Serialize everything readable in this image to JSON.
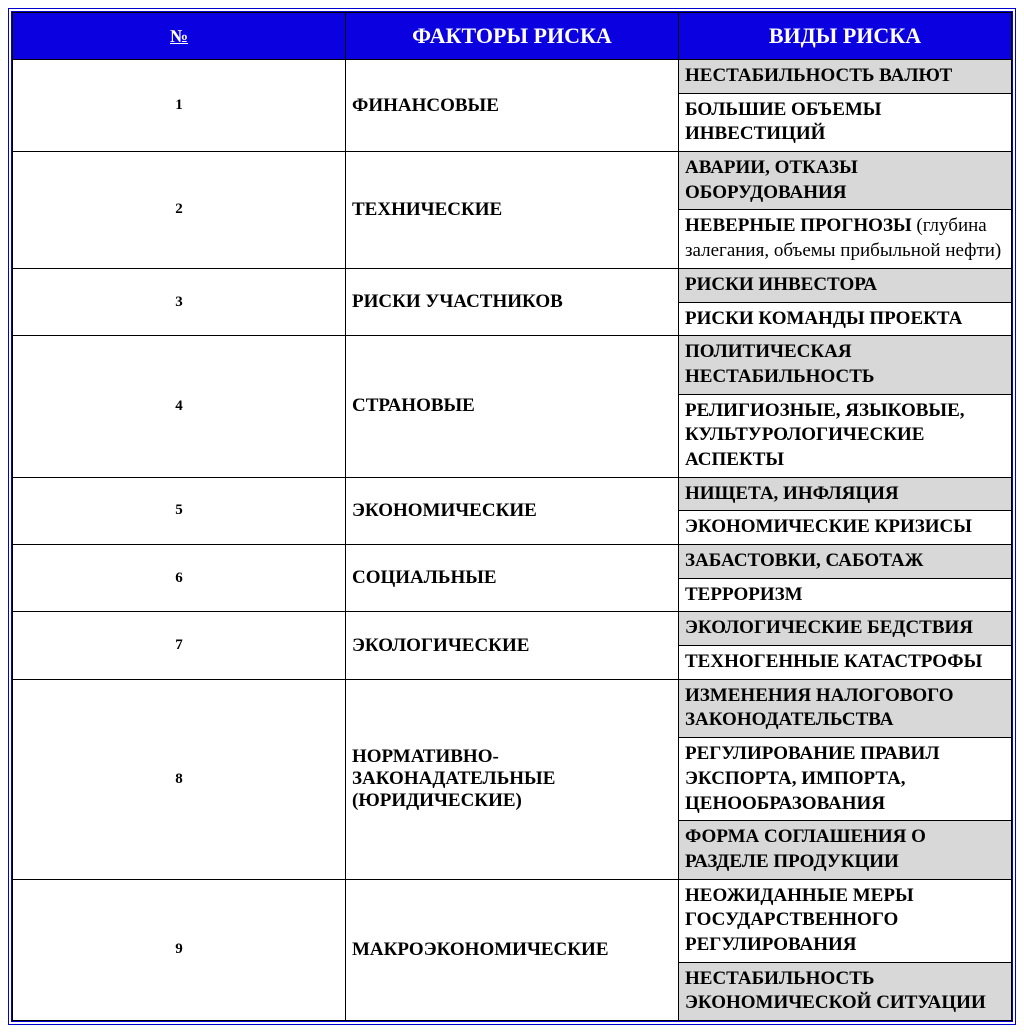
{
  "colors": {
    "header_bg": "#0a00e0",
    "header_text": "#ffffff",
    "border": "#000000",
    "shade": "#d8d8d8",
    "plain": "#ffffff",
    "frame": "#0000d0"
  },
  "headers": {
    "num": "№",
    "factors": "ФАКТОРЫ РИСКА",
    "types": "ВИДЫ РИСКА"
  },
  "rows": [
    {
      "num": "1",
      "factor": "ФИНАНСОВЫЕ",
      "types": [
        {
          "text": "НЕСТАБИЛЬНОСТЬ ВАЛЮТ",
          "shade": true
        },
        {
          "text": "БОЛЬШИЕ ОБЪЕМЫ ИНВЕСТИЦИЙ",
          "shade": false
        }
      ]
    },
    {
      "num": "2",
      "factor": "ТЕХНИЧЕСКИЕ",
      "types": [
        {
          "text": "АВАРИИ, ОТКАЗЫ ОБОРУДОВАНИЯ",
          "shade": true
        },
        {
          "html": "НЕВЕРНЫЕ ПРОГНОЗЫ <span class=\"mixed-normal\">(глубина залегания, объемы прибыльной нефти)</span>",
          "shade": false
        }
      ]
    },
    {
      "num": "3",
      "factor": "РИСКИ УЧАСТНИКОВ",
      "types": [
        {
          "text": "РИСКИ ИНВЕСТОРА",
          "shade": true
        },
        {
          "text": "РИСКИ КОМАНДЫ ПРОЕКТА",
          "shade": false
        }
      ]
    },
    {
      "num": "4",
      "factor": "СТРАНОВЫЕ",
      "types": [
        {
          "text": "ПОЛИТИЧЕСКАЯ НЕСТАБИЛЬНОСТЬ",
          "shade": true
        },
        {
          "text": "РЕЛИГИОЗНЫЕ, ЯЗЫКОВЫЕ, КУЛЬТУРОЛОГИЧЕСКИЕ АСПЕКТЫ",
          "shade": false
        }
      ]
    },
    {
      "num": "5",
      "factor": "ЭКОНОМИЧЕСКИЕ",
      "types": [
        {
          "text": "НИЩЕТА, ИНФЛЯЦИЯ",
          "shade": true
        },
        {
          "text": "ЭКОНОМИЧЕСКИЕ КРИЗИСЫ",
          "shade": false
        }
      ]
    },
    {
      "num": "6",
      "factor": "СОЦИАЛЬНЫЕ",
      "types": [
        {
          "text": "ЗАБАСТОВКИ, САБОТАЖ",
          "shade": true
        },
        {
          "text": "ТЕРРОРИЗМ",
          "shade": false
        }
      ]
    },
    {
      "num": "7",
      "factor": "ЭКОЛОГИЧЕСКИЕ",
      "types": [
        {
          "text": "ЭКОЛОГИЧЕСКИЕ БЕДСТВИЯ",
          "shade": true
        },
        {
          "text": "ТЕХНОГЕННЫЕ КАТАСТРОФЫ",
          "shade": false
        }
      ]
    },
    {
      "num": "8",
      "factor": "НОРМАТИВНО-ЗАКОНАДАТЕЛЬНЫЕ (ЮРИДИЧЕСКИЕ)",
      "types": [
        {
          "text": "ИЗМЕНЕНИЯ НАЛОГОВОГО ЗАКОНОДАТЕЛЬСТВА",
          "shade": true
        },
        {
          "text": "РЕГУЛИРОВАНИЕ ПРАВИЛ ЭКСПОРТА, ИМПОРТА, ЦЕНООБРАЗОВАНИЯ",
          "shade": false
        },
        {
          "text": "ФОРМА СОГЛАШЕНИЯ О РАЗДЕЛЕ ПРОДУКЦИИ",
          "shade": true
        }
      ]
    },
    {
      "num": "9",
      "factor": "МАКРОЭКОНОМИЧЕСКИЕ",
      "types": [
        {
          "text": "НЕОЖИДАННЫЕ МЕРЫ ГОСУДАРСТВЕННОГО РЕГУЛИРОВАНИЯ",
          "shade": false
        },
        {
          "text": "НЕСТАБИЛЬНОСТЬ ЭКОНОМИЧЕСКОЙ СИТУАЦИИ",
          "shade": true
        }
      ]
    }
  ]
}
